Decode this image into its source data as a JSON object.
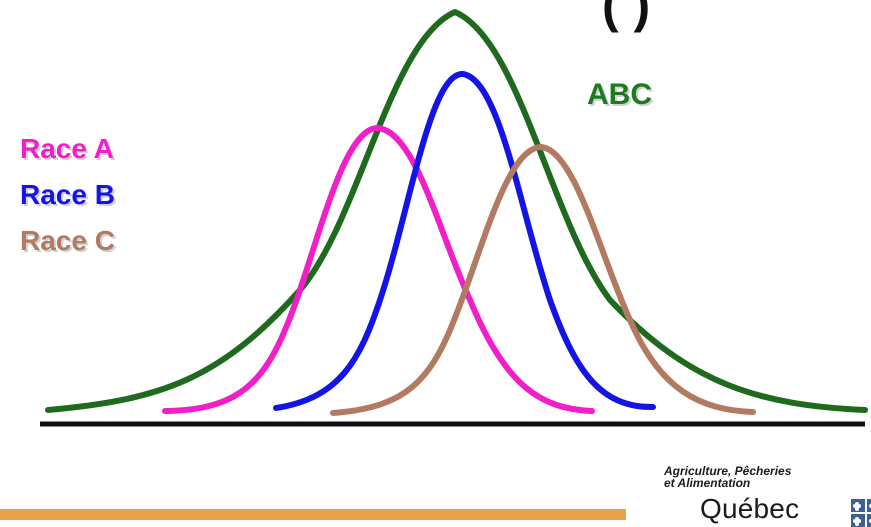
{
  "title_fragment": "(        )",
  "legend": {
    "race_a": "Race A",
    "race_b": "Race B",
    "race_c": "Race C"
  },
  "combined_label": "ABC",
  "logo": {
    "line1": "Agriculture, Pêcheries",
    "line2": "et Alimentation",
    "wordmark": "Québec"
  },
  "colors": {
    "race_a": "#f01fc8",
    "race_b": "#1414e6",
    "race_c": "#b27b61",
    "abc": "#1f6a1f",
    "footer_bar": "#e7a24b"
  },
  "icons": {
    "province_flag": "quebec-flag-icon"
  }
}
